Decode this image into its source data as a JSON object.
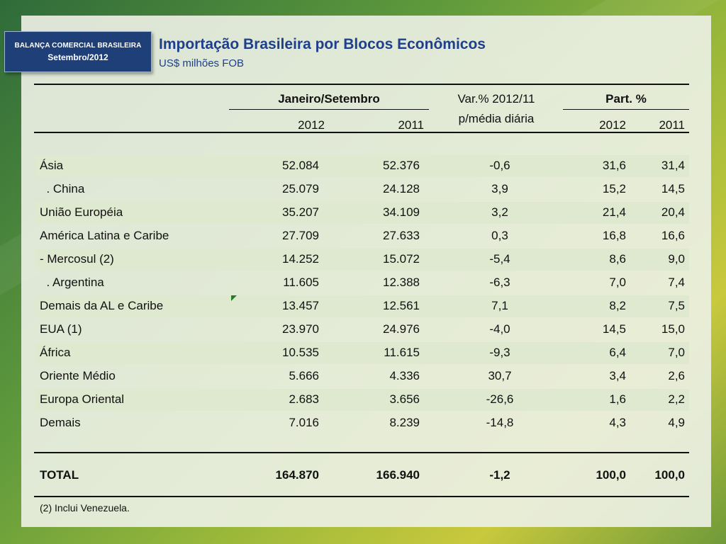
{
  "badge": {
    "line1": "BALANÇA COMERCIAL BRASILEIRA",
    "line2": "Setembro/2012"
  },
  "title": "Importação Brasileira por Blocos Econômicos",
  "subtitle": "US$ milhões FOB",
  "header": {
    "period": "Janeiro/Setembro",
    "var_line1": "Var.% 2012/11",
    "var_line2": "p/média diária",
    "part": "Part. %",
    "y2012": "2012",
    "y2011": "2011",
    "p2012": "2012",
    "p2011": "2011"
  },
  "rows": [
    {
      "label": "Ásia",
      "v2012": "52.084",
      "v2011": "52.376",
      "var": "-0,6",
      "p2012": "31,6",
      "p2011": "31,4"
    },
    {
      "label": "  . China",
      "v2012": "25.079",
      "v2011": "24.128",
      "var": "3,9",
      "p2012": "15,2",
      "p2011": "14,5"
    },
    {
      "label": "União Européia",
      "v2012": "35.207",
      "v2011": "34.109",
      "var": "3,2",
      "p2012": "21,4",
      "p2011": "20,4"
    },
    {
      "label": "América Latina e Caribe",
      "v2012": "27.709",
      "v2011": "27.633",
      "var": "0,3",
      "p2012": "16,8",
      "p2011": "16,6"
    },
    {
      "label": "- Mercosul (2)",
      "v2012": "14.252",
      "v2011": "15.072",
      "var": "-5,4",
      "p2012": "8,6",
      "p2011": "9,0"
    },
    {
      "label": "  . Argentina",
      "v2012": "11.605",
      "v2011": "12.388",
      "var": "-6,3",
      "p2012": "7,0",
      "p2011": "7,4"
    },
    {
      "label": "Demais da AL e Caribe",
      "v2012": "13.457",
      "v2011": "12.561",
      "var": "7,1",
      "p2012": "8,2",
      "p2011": "7,5"
    },
    {
      "label": "EUA (1)",
      "v2012": "23.970",
      "v2011": "24.976",
      "var": "-4,0",
      "p2012": "14,5",
      "p2011": "15,0"
    },
    {
      "label": "África",
      "v2012": "10.535",
      "v2011": "11.615",
      "var": "-9,3",
      "p2012": "6,4",
      "p2011": "7,0"
    },
    {
      "label": "Oriente Médio",
      "v2012": "5.666",
      "v2011": "4.336",
      "var": "30,7",
      "p2012": "3,4",
      "p2011": "2,6"
    },
    {
      "label": "Europa Oriental",
      "v2012": "2.683",
      "v2011": "3.656",
      "var": "-26,6",
      "p2012": "1,6",
      "p2011": "2,2"
    },
    {
      "label": "Demais",
      "v2012": "7.016",
      "v2011": "8.239",
      "var": "-14,8",
      "p2012": "4,3",
      "p2011": "4,9"
    }
  ],
  "total": {
    "label": "TOTAL",
    "v2012": "164.870",
    "v2011": "166.940",
    "var": "-1,2",
    "p2012": "100,0",
    "p2011": "100,0"
  },
  "note": "(2) Inclui Venezuela."
}
